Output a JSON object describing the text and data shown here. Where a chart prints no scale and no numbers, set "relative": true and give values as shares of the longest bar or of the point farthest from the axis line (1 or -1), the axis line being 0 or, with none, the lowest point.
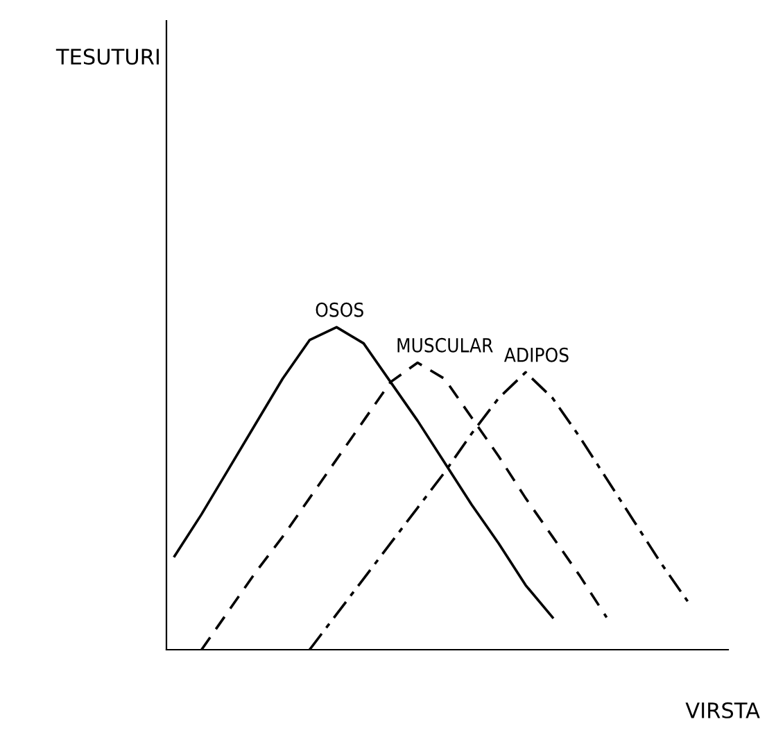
{
  "chart_data": {
    "type": "line",
    "relative": true,
    "xlabel": "VIRSTA",
    "annotations": [
      "TESUTURI"
    ],
    "categories": [
      null,
      null,
      null,
      null,
      null,
      null,
      null,
      null,
      null,
      null,
      null,
      null,
      null,
      null,
      null,
      null,
      null,
      null,
      null,
      null,
      null
    ],
    "series": [
      {
        "name": "OSOS",
        "color": "#000000",
        "line_style": "solid",
        "values": [
          0.29,
          0.42,
          0.56,
          0.7,
          0.84,
          0.96,
          1.0,
          0.95,
          0.83,
          0.71,
          0.58,
          0.45,
          0.33,
          0.2,
          0.1,
          null,
          null,
          null,
          null,
          null,
          null
        ]
      },
      {
        "name": "MUSCULAR",
        "color": "#000000",
        "line_style": "dashed",
        "values": [
          null,
          0.0,
          0.12,
          0.24,
          0.35,
          0.47,
          0.59,
          0.71,
          0.83,
          0.89,
          0.84,
          0.72,
          0.6,
          0.47,
          0.35,
          0.23,
          0.1,
          null,
          null,
          null,
          null
        ]
      },
      {
        "name": "ADIPOS",
        "color": "#000000",
        "line_style": "dashdot",
        "values": [
          null,
          null,
          null,
          null,
          null,
          0.0,
          0.11,
          0.22,
          0.33,
          0.44,
          0.55,
          0.67,
          0.78,
          0.86,
          0.78,
          0.66,
          0.53,
          0.4,
          0.27,
          0.15,
          null
        ]
      }
    ],
    "grid": false,
    "legend": false,
    "marker": "none"
  }
}
